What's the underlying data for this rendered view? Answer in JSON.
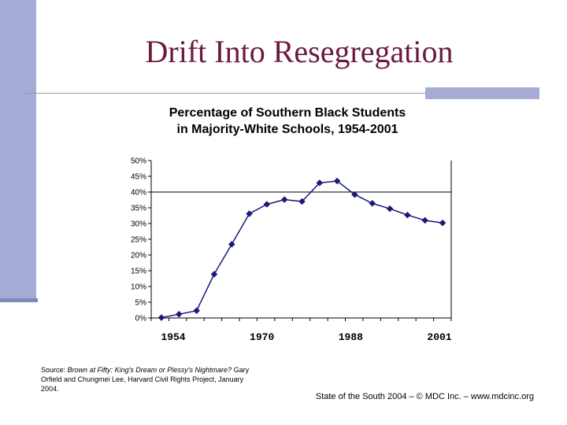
{
  "slide": {
    "title": "Drift Into Resegregation",
    "source_label": "Source:",
    "source_title": "Brown at Fifty: King's Dream or Plessy's Nightmare?",
    "source_rest": "Gary Orfield and Chungmei Lee, Harvard Civil Rights Project, January 2004.",
    "footer": "State of the South 2004 – © MDC Inc. – www.mdcinc.org"
  },
  "colors": {
    "accent_bar": "#a6abd5",
    "title_color": "#6b1a3e",
    "series_color": "#1a1a7a"
  },
  "chart_data": {
    "type": "line",
    "title_line1": "Percentage of Southern Black Students",
    "title_line2": "in Majority-White Schools, 1954-2001",
    "x_tick_labels": [
      "1954",
      "1970",
      "1988",
      "2001"
    ],
    "y_tick_labels": [
      "0%",
      "5%",
      "10%",
      "15%",
      "20%",
      "25%",
      "30%",
      "35%",
      "40%",
      "45%",
      "50%"
    ],
    "ylim": [
      0,
      50
    ],
    "reference_line": 40,
    "grid": false,
    "series": [
      {
        "values": [
          0.1,
          1.2,
          2.3,
          13.9,
          23.4,
          33.1,
          36.1,
          37.6,
          37.0,
          42.9,
          43.5,
          39.2,
          36.4,
          34.7,
          32.7,
          31.0,
          30.2
        ]
      }
    ]
  }
}
